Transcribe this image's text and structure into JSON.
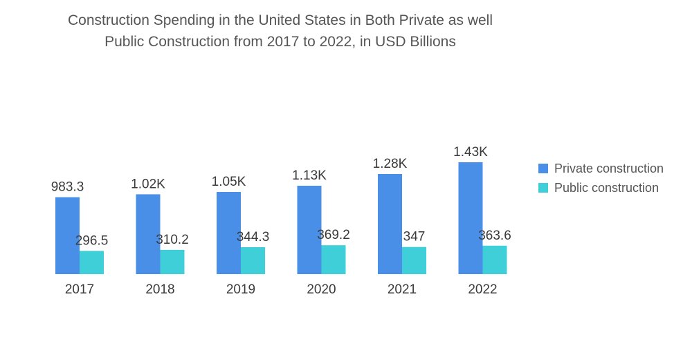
{
  "chart_data": {
    "type": "bar",
    "title_line1": "Construction Spending in the United States in Both Private as well",
    "title_line2": "Public Construction from 2017 to 2022, in USD Billions",
    "categories": [
      "2017",
      "2018",
      "2019",
      "2020",
      "2021",
      "2022"
    ],
    "series": [
      {
        "name": "Private construction",
        "color": "#4a8fe7",
        "values": [
          983.3,
          1020,
          1050,
          1130,
          1280,
          1430
        ],
        "labels": [
          "983.3",
          "1.02K",
          "1.05K",
          "1.13K",
          "1.28K",
          "1.43K"
        ]
      },
      {
        "name": "Public construction",
        "color": "#3ecfd8",
        "values": [
          296.5,
          310.2,
          344.3,
          369.2,
          347,
          363.6
        ],
        "labels": [
          "296.5",
          "310.2",
          "344.3",
          "369.2",
          "347",
          "363.6"
        ]
      }
    ],
    "xlabel": "",
    "ylabel": "",
    "ylim": [
      0,
      1430
    ],
    "grid": false,
    "legend_position": "right"
  }
}
